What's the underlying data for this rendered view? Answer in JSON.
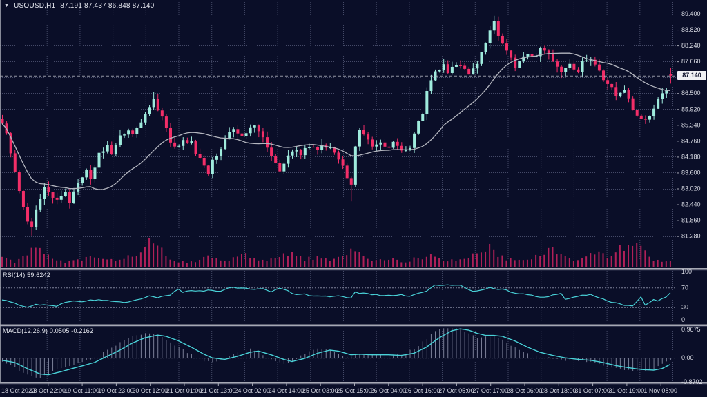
{
  "window": {
    "symbol": "USOUSD,H1",
    "ohlc_text": "87.191 87.437 86.848 87.140"
  },
  "icons": {
    "collapse_arrow": "▼"
  },
  "chart_data": [
    {
      "type": "candlestick",
      "symbol": "USOUSD",
      "timeframe": "H1",
      "ohlc_display": {
        "open": 87.191,
        "high": 87.437,
        "low": 86.848,
        "close": 87.14
      },
      "current_price": 87.14,
      "current_price_label": "87.140",
      "price_axis_labels": [
        "89.400",
        "88.820",
        "88.240",
        "87.660",
        "87.080",
        "86.500",
        "85.920",
        "85.340",
        "84.760",
        "84.180",
        "83.600",
        "83.020",
        "82.440",
        "81.860",
        "81.280"
      ],
      "price_axis_top": 89.4,
      "price_axis_step": 0.58,
      "time_axis_labels": [
        "18 Oct 2022",
        "18 Oct 22:00",
        "19 Oct 11:00",
        "19 Oct 23:00",
        "20 Oct 12:00",
        "21 Oct 01:00",
        "21 Oct 13:00",
        "24 Oct 02:00",
        "24 Oct 14:00",
        "25 Oct 03:00",
        "25 Oct 15:00",
        "26 Oct 04:00",
        "26 Oct 16:00",
        "27 Oct 05:00",
        "27 Oct 17:00",
        "28 Oct 06:00",
        "28 Oct 18:00",
        "31 Oct 07:00",
        "31 Oct 19:00",
        "1 Nov 08:00"
      ],
      "candle_count": 160,
      "close_anchors": [
        [
          0,
          85.45
        ],
        [
          1,
          85.0
        ],
        [
          3,
          83.6
        ],
        [
          5,
          82.3
        ],
        [
          6,
          81.8
        ],
        [
          7,
          81.55
        ],
        [
          8,
          82.3
        ],
        [
          10,
          83.1
        ],
        [
          11,
          82.85
        ],
        [
          13,
          82.55
        ],
        [
          15,
          82.95
        ],
        [
          16,
          82.55
        ],
        [
          18,
          83.3
        ],
        [
          20,
          83.65
        ],
        [
          21,
          83.4
        ],
        [
          23,
          84.3
        ],
        [
          25,
          84.6
        ],
        [
          26,
          84.35
        ],
        [
          28,
          84.9
        ],
        [
          30,
          85.1
        ],
        [
          31,
          84.95
        ],
        [
          33,
          85.5
        ],
        [
          34,
          85.8
        ],
        [
          36,
          86.3
        ],
        [
          37,
          85.95
        ],
        [
          39,
          85.3
        ],
        [
          40,
          84.75
        ],
        [
          42,
          84.5
        ],
        [
          43,
          84.8
        ],
        [
          45,
          84.7
        ],
        [
          46,
          84.3
        ],
        [
          48,
          83.9
        ],
        [
          49,
          83.55
        ],
        [
          50,
          84.0
        ],
        [
          52,
          84.5
        ],
        [
          53,
          84.8
        ],
        [
          55,
          85.2
        ],
        [
          57,
          84.9
        ],
        [
          58,
          85.1
        ],
        [
          60,
          85.3
        ],
        [
          62,
          84.9
        ],
        [
          63,
          84.45
        ],
        [
          65,
          84.0
        ],
        [
          66,
          83.7
        ],
        [
          68,
          84.2
        ],
        [
          70,
          84.5
        ],
        [
          71,
          84.3
        ],
        [
          73,
          84.6
        ],
        [
          75,
          84.4
        ],
        [
          76,
          84.6
        ],
        [
          78,
          84.5
        ],
        [
          79,
          84.3
        ],
        [
          81,
          83.8
        ],
        [
          83,
          83.1
        ],
        [
          84,
          84.5
        ],
        [
          85,
          85.15
        ],
        [
          87,
          84.8
        ],
        [
          88,
          84.6
        ],
        [
          90,
          84.7
        ],
        [
          92,
          84.5
        ],
        [
          93,
          84.65
        ],
        [
          95,
          84.4
        ],
        [
          97,
          84.55
        ],
        [
          98,
          85.0
        ],
        [
          100,
          85.8
        ],
        [
          101,
          86.6
        ],
        [
          103,
          87.3
        ],
        [
          105,
          87.5
        ],
        [
          106,
          87.3
        ],
        [
          108,
          87.5
        ],
        [
          110,
          87.4
        ],
        [
          111,
          87.2
        ],
        [
          113,
          87.6
        ],
        [
          114,
          88.0
        ],
        [
          116,
          88.8
        ],
        [
          117,
          89.1
        ],
        [
          118,
          88.6
        ],
        [
          119,
          88.3
        ],
        [
          121,
          87.8
        ],
        [
          122,
          87.45
        ],
        [
          123,
          87.7
        ],
        [
          125,
          88.0
        ],
        [
          127,
          87.8
        ],
        [
          128,
          88.1
        ],
        [
          130,
          87.9
        ],
        [
          132,
          87.5
        ],
        [
          133,
          87.3
        ],
        [
          135,
          87.6
        ],
        [
          137,
          87.2
        ],
        [
          138,
          87.6
        ],
        [
          140,
          87.7
        ],
        [
          142,
          87.3
        ],
        [
          143,
          86.9
        ],
        [
          145,
          86.7
        ],
        [
          146,
          86.4
        ],
        [
          148,
          86.6
        ],
        [
          150,
          85.9
        ],
        [
          151,
          85.7
        ],
        [
          153,
          85.5
        ],
        [
          155,
          86.0
        ],
        [
          156,
          86.3
        ],
        [
          158,
          86.7
        ],
        [
          159,
          87.14
        ]
      ],
      "wick_overrides": {
        "high": [
          [
            36,
            86.55
          ],
          [
            117,
            89.33
          ],
          [
            159,
            87.437
          ]
        ],
        "low": [
          [
            7,
            81.3
          ],
          [
            83,
            82.55
          ],
          [
            159,
            86.848
          ]
        ]
      },
      "last_candle": {
        "open": 87.191,
        "close": 87.14
      },
      "ma_period": 22,
      "volume_anchors": [
        [
          0,
          14
        ],
        [
          3,
          8
        ],
        [
          6,
          22
        ],
        [
          9,
          26
        ],
        [
          12,
          12
        ],
        [
          15,
          8
        ],
        [
          18,
          10
        ],
        [
          21,
          14
        ],
        [
          24,
          10
        ],
        [
          27,
          12
        ],
        [
          30,
          16
        ],
        [
          33,
          20
        ],
        [
          35,
          34
        ],
        [
          36,
          30
        ],
        [
          38,
          24
        ],
        [
          40,
          12
        ],
        [
          43,
          8
        ],
        [
          46,
          10
        ],
        [
          49,
          14
        ],
        [
          52,
          10
        ],
        [
          55,
          12
        ],
        [
          58,
          18
        ],
        [
          60,
          12
        ],
        [
          63,
          8
        ],
        [
          66,
          16
        ],
        [
          69,
          20
        ],
        [
          72,
          12
        ],
        [
          75,
          14
        ],
        [
          78,
          10
        ],
        [
          81,
          18
        ],
        [
          83,
          26
        ],
        [
          85,
          22
        ],
        [
          87,
          12
        ],
        [
          90,
          10
        ],
        [
          93,
          12
        ],
        [
          96,
          8
        ],
        [
          99,
          14
        ],
        [
          102,
          18
        ],
        [
          105,
          12
        ],
        [
          108,
          10
        ],
        [
          111,
          14
        ],
        [
          114,
          22
        ],
        [
          116,
          28
        ],
        [
          118,
          20
        ],
        [
          120,
          12
        ],
        [
          123,
          10
        ],
        [
          126,
          14
        ],
        [
          129,
          24
        ],
        [
          131,
          28
        ],
        [
          133,
          16
        ],
        [
          136,
          12
        ],
        [
          139,
          18
        ],
        [
          141,
          22
        ],
        [
          144,
          14
        ],
        [
          147,
          26
        ],
        [
          149,
          32
        ],
        [
          151,
          34
        ],
        [
          153,
          22
        ],
        [
          155,
          12
        ],
        [
          157,
          10
        ],
        [
          159,
          8
        ]
      ],
      "colors": {
        "background": "#0a0e28",
        "bull": "#9febdd",
        "bear": "#f22e68",
        "volume": "#b02058",
        "ma_line": "#b4b6bf",
        "grid": "#454a68",
        "level_line": "#80849c",
        "separator": "#a6a8b4",
        "axis_text": "#d9dbe4",
        "time_text": "#cfd1dc",
        "indicator_line": "#49d2d8",
        "histogram": "#8f94ac",
        "price_box_bg": "#f0f1f4",
        "price_box_text": "#0a0e28"
      }
    },
    {
      "type": "line",
      "name": "RSI",
      "label": "RSI(14) 59.6242",
      "current_value": 59.6242,
      "range": [
        0,
        100
      ],
      "levels": [
        70,
        30
      ],
      "scale_labels": [
        "100",
        "70",
        "30",
        "0"
      ],
      "anchors": [
        [
          0,
          45
        ],
        [
          3,
          38
        ],
        [
          6,
          30
        ],
        [
          8,
          36
        ],
        [
          10,
          35
        ],
        [
          13,
          33
        ],
        [
          15,
          40
        ],
        [
          17,
          44
        ],
        [
          19,
          42
        ],
        [
          22,
          45
        ],
        [
          24,
          44
        ],
        [
          26,
          43
        ],
        [
          28,
          42
        ],
        [
          30,
          40
        ],
        [
          33,
          48
        ],
        [
          35,
          52
        ],
        [
          37,
          50
        ],
        [
          40,
          55
        ],
        [
          42,
          67
        ],
        [
          43,
          60
        ],
        [
          45,
          64
        ],
        [
          47,
          63
        ],
        [
          49,
          64
        ],
        [
          52,
          63
        ],
        [
          54,
          70
        ],
        [
          56,
          69
        ],
        [
          58,
          70
        ],
        [
          60,
          66
        ],
        [
          62,
          68
        ],
        [
          64,
          62
        ],
        [
          66,
          70
        ],
        [
          68,
          63
        ],
        [
          70,
          55
        ],
        [
          72,
          57
        ],
        [
          74,
          53
        ],
        [
          76,
          52
        ],
        [
          78,
          52
        ],
        [
          80,
          54
        ],
        [
          83,
          48
        ],
        [
          84,
          60
        ],
        [
          86,
          58
        ],
        [
          88,
          56
        ],
        [
          90,
          55
        ],
        [
          93,
          53
        ],
        [
          95,
          55
        ],
        [
          97,
          53
        ],
        [
          99,
          58
        ],
        [
          101,
          62
        ],
        [
          103,
          75
        ],
        [
          105,
          76
        ],
        [
          107,
          75
        ],
        [
          109,
          74
        ],
        [
          111,
          67
        ],
        [
          112,
          63
        ],
        [
          114,
          66
        ],
        [
          116,
          70
        ],
        [
          117,
          67
        ],
        [
          119,
          68
        ],
        [
          121,
          60
        ],
        [
          123,
          58
        ],
        [
          125,
          55
        ],
        [
          127,
          52
        ],
        [
          129,
          50
        ],
        [
          131,
          55
        ],
        [
          133,
          57
        ],
        [
          134,
          45
        ],
        [
          136,
          50
        ],
        [
          138,
          55
        ],
        [
          140,
          55
        ],
        [
          142,
          50
        ],
        [
          144,
          42
        ],
        [
          146,
          40
        ],
        [
          148,
          35
        ],
        [
          150,
          33
        ],
        [
          152,
          50
        ],
        [
          153,
          35
        ],
        [
          155,
          45
        ],
        [
          156,
          43
        ],
        [
          158,
          50
        ],
        [
          159,
          59.62
        ]
      ]
    },
    {
      "type": "macd",
      "name": "MACD",
      "label": "MACD(12,26,9) 0.0505 -0.2162",
      "main_value": 0.0505,
      "signal_value": -0.2162,
      "range": [
        0.9675,
        -0.8702
      ],
      "scale_labels": [
        "0.9675",
        "0.00",
        "-0.8702"
      ],
      "signal_anchors": [
        [
          0,
          -0.08
        ],
        [
          3,
          -0.15
        ],
        [
          6,
          -0.35
        ],
        [
          9,
          -0.52
        ],
        [
          11,
          -0.55
        ],
        [
          14,
          -0.45
        ],
        [
          18,
          -0.3
        ],
        [
          22,
          -0.15
        ],
        [
          25,
          0.05
        ],
        [
          28,
          0.25
        ],
        [
          31,
          0.48
        ],
        [
          34,
          0.65
        ],
        [
          37,
          0.74
        ],
        [
          39,
          0.7
        ],
        [
          42,
          0.55
        ],
        [
          45,
          0.35
        ],
        [
          48,
          0.12
        ],
        [
          50,
          0.0
        ],
        [
          53,
          -0.05
        ],
        [
          56,
          0.05
        ],
        [
          59,
          0.18
        ],
        [
          61,
          0.22
        ],
        [
          64,
          0.1
        ],
        [
          67,
          -0.05
        ],
        [
          69,
          -0.12
        ],
        [
          72,
          -0.02
        ],
        [
          75,
          0.15
        ],
        [
          78,
          0.25
        ],
        [
          80,
          0.22
        ],
        [
          83,
          0.1
        ],
        [
          85,
          0.12
        ],
        [
          88,
          0.1
        ],
        [
          92,
          0.1
        ],
        [
          95,
          0.08
        ],
        [
          98,
          0.15
        ],
        [
          101,
          0.35
        ],
        [
          104,
          0.65
        ],
        [
          107,
          0.88
        ],
        [
          109,
          0.94
        ],
        [
          111,
          0.9
        ],
        [
          113,
          0.8
        ],
        [
          115,
          0.73
        ],
        [
          117,
          0.73
        ],
        [
          119,
          0.7
        ],
        [
          122,
          0.55
        ],
        [
          125,
          0.35
        ],
        [
          128,
          0.18
        ],
        [
          131,
          0.08
        ],
        [
          134,
          0.0
        ],
        [
          137,
          -0.05
        ],
        [
          140,
          -0.08
        ],
        [
          143,
          -0.15
        ],
        [
          146,
          -0.25
        ],
        [
          149,
          -0.32
        ],
        [
          152,
          -0.38
        ],
        [
          155,
          -0.4
        ],
        [
          157,
          -0.35
        ],
        [
          159,
          -0.21
        ]
      ]
    }
  ]
}
